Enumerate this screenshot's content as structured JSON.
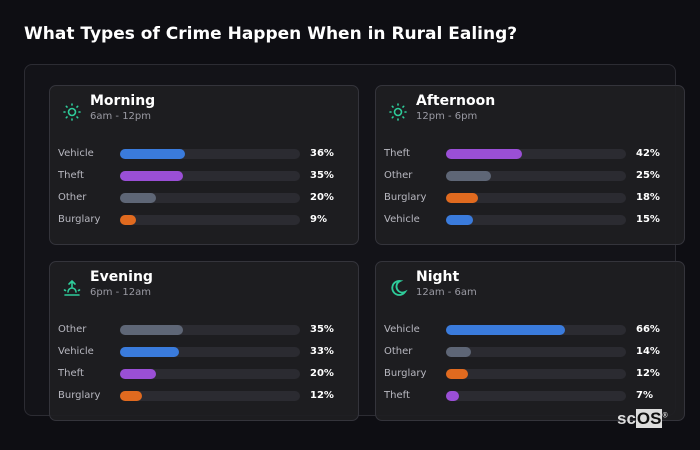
{
  "title": "What Types of Crime Happen When in Rural Ealing?",
  "colors": {
    "Vehicle": "#3a7bdc",
    "Theft": "#9a4fd6",
    "Other": "#5e6676",
    "Burglary": "#e06a1f",
    "icon": "#2ecc9a"
  },
  "chart_data": [
    {
      "type": "bar",
      "title": "Morning",
      "subtitle": "6am - 12pm",
      "icon": "sun-icon",
      "xlim": [
        0,
        100
      ],
      "categories": [
        "Vehicle",
        "Theft",
        "Other",
        "Burglary"
      ],
      "values": [
        36,
        35,
        20,
        9
      ]
    },
    {
      "type": "bar",
      "title": "Afternoon",
      "subtitle": "12pm - 6pm",
      "icon": "sun-icon",
      "xlim": [
        0,
        100
      ],
      "categories": [
        "Theft",
        "Other",
        "Burglary",
        "Vehicle"
      ],
      "values": [
        42,
        25,
        18,
        15
      ]
    },
    {
      "type": "bar",
      "title": "Evening",
      "subtitle": "6pm - 12am",
      "icon": "sunset-icon",
      "xlim": [
        0,
        100
      ],
      "categories": [
        "Other",
        "Vehicle",
        "Theft",
        "Burglary"
      ],
      "values": [
        35,
        33,
        20,
        12
      ]
    },
    {
      "type": "bar",
      "title": "Night",
      "subtitle": "12am - 6am",
      "icon": "moon-icon",
      "xlim": [
        0,
        100
      ],
      "categories": [
        "Vehicle",
        "Other",
        "Burglary",
        "Theft"
      ],
      "values": [
        66,
        14,
        12,
        7
      ]
    }
  ],
  "logo": {
    "text_a": "sc",
    "text_b": "OS",
    "mark": "®"
  }
}
